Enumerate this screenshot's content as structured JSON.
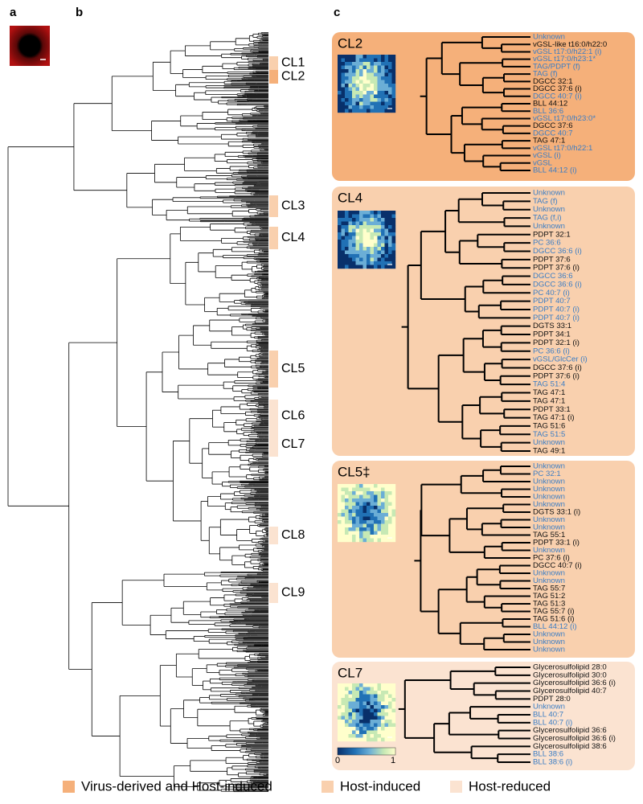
{
  "panel_labels": [
    "a",
    "b",
    "c"
  ],
  "clusters": [
    {
      "label": "CL1",
      "color": "#f9d0ae"
    },
    {
      "label": "CL2",
      "color": "#f5b07a"
    },
    {
      "label": "CL3",
      "color": "#f9d0ae"
    },
    {
      "label": "CL4",
      "color": "#f9d0ae"
    },
    {
      "label": "CL5",
      "color": "#f9d0ae"
    },
    {
      "label": "CL6",
      "color": "#fbe3d1"
    },
    {
      "label": "CL7",
      "color": "#fbe3d1"
    },
    {
      "label": "CL8",
      "color": "#fbe3d1"
    },
    {
      "label": "CL9",
      "color": "#fbe3d1"
    }
  ],
  "panels": [
    {
      "title": "CL2",
      "fill": "#f5b07a",
      "leaves": [
        {
          "label": "Unknown",
          "color": "#3b7dc4"
        },
        {
          "label": "vGSL-like t16:0/h22:0",
          "color": "#111111"
        },
        {
          "label": "vGSL t17:0/h22:1 (i)",
          "color": "#3b7dc4"
        },
        {
          "label": "vGSL t17:0/h23:1*",
          "color": "#3b7dc4"
        },
        {
          "label": "TAG/PDPT (f)",
          "color": "#3b7dc4"
        },
        {
          "label": "TAG (f)",
          "color": "#3b7dc4"
        },
        {
          "label": "DGCC 32:1",
          "color": "#111111"
        },
        {
          "label": "DGCC 37:6 (i)",
          "color": "#111111"
        },
        {
          "label": "DGCC 40:7 (i)",
          "color": "#3b7dc4"
        },
        {
          "label": "BLL 44:12",
          "color": "#111111"
        },
        {
          "label": "BLL 36:6",
          "color": "#3b7dc4"
        },
        {
          "label": "vGSL t17:0/h23:0*",
          "color": "#3b7dc4"
        },
        {
          "label": "DGCC 37:6",
          "color": "#111111"
        },
        {
          "label": "DGCC 40:7",
          "color": "#3b7dc4"
        },
        {
          "label": "TAG 47:1",
          "color": "#111111"
        },
        {
          "label": "vGSL t17:0/h22:1",
          "color": "#3b7dc4"
        },
        {
          "label": "vGSL (i)",
          "color": "#3b7dc4"
        },
        {
          "label": "vGSL",
          "color": "#3b7dc4"
        },
        {
          "label": "BLL 44:12 (i)",
          "color": "#3b7dc4"
        }
      ]
    },
    {
      "title": "CL4",
      "fill": "#f9d0ae",
      "leaves": [
        {
          "label": "Unknown",
          "color": "#3b7dc4"
        },
        {
          "label": "TAG (f)",
          "color": "#3b7dc4"
        },
        {
          "label": "Unknown",
          "color": "#3b7dc4"
        },
        {
          "label": "TAG (f,i)",
          "color": "#3b7dc4"
        },
        {
          "label": "Unknown",
          "color": "#3b7dc4"
        },
        {
          "label": "PDPT 32:1",
          "color": "#111111"
        },
        {
          "label": "PC 36:6",
          "color": "#3b7dc4"
        },
        {
          "label": "DGCC 36:6 (i)",
          "color": "#3b7dc4"
        },
        {
          "label": "PDPT 37:6",
          "color": "#111111"
        },
        {
          "label": "PDPT 37:6 (i)",
          "color": "#111111"
        },
        {
          "label": "DGCC 36:6",
          "color": "#3b7dc4"
        },
        {
          "label": "DGCC 36:6 (i)",
          "color": "#3b7dc4"
        },
        {
          "label": "PC 40:7 (i)",
          "color": "#3b7dc4"
        },
        {
          "label": "PDPT 40:7",
          "color": "#3b7dc4"
        },
        {
          "label": "PDPT 40:7 (i)",
          "color": "#3b7dc4"
        },
        {
          "label": "PDPT 40:7 (i)",
          "color": "#3b7dc4"
        },
        {
          "label": "DGTS 33:1",
          "color": "#111111"
        },
        {
          "label": "PDPT 34:1",
          "color": "#111111"
        },
        {
          "label": "PDPT 32:1 (i)",
          "color": "#111111"
        },
        {
          "label": "PC 36:6 (i)",
          "color": "#3b7dc4"
        },
        {
          "label": "vGSL/GlcCer (i)",
          "color": "#3b7dc4"
        },
        {
          "label": "DGCC 37:6 (i)",
          "color": "#111111"
        },
        {
          "label": "PDPT 37:6 (i)",
          "color": "#111111"
        },
        {
          "label": "TAG 51:4",
          "color": "#3b7dc4"
        },
        {
          "label": "TAG 47:1",
          "color": "#111111"
        },
        {
          "label": "TAG 47:1",
          "color": "#111111"
        },
        {
          "label": "PDPT 33:1",
          "color": "#111111"
        },
        {
          "label": "TAG 47:1 (i)",
          "color": "#111111"
        },
        {
          "label": "TAG 51:6",
          "color": "#111111"
        },
        {
          "label": "TAG 51:5",
          "color": "#3b7dc4"
        },
        {
          "label": "Unknown",
          "color": "#3b7dc4"
        },
        {
          "label": "TAG 49:1",
          "color": "#111111"
        }
      ]
    },
    {
      "title": "CL5‡",
      "fill": "#f9d0ae",
      "leaves": [
        {
          "label": "Unknown",
          "color": "#3b7dc4"
        },
        {
          "label": "PC 32:1",
          "color": "#3b7dc4"
        },
        {
          "label": "Unknown",
          "color": "#3b7dc4"
        },
        {
          "label": "Unknown",
          "color": "#3b7dc4"
        },
        {
          "label": "Unknown",
          "color": "#3b7dc4"
        },
        {
          "label": "Unknown",
          "color": "#3b7dc4"
        },
        {
          "label": "DGTS 33:1 (i)",
          "color": "#111111"
        },
        {
          "label": "Unknown",
          "color": "#3b7dc4"
        },
        {
          "label": "Unknown",
          "color": "#3b7dc4"
        },
        {
          "label": "TAG 55:1",
          "color": "#111111"
        },
        {
          "label": "PDPT 33:1 (i)",
          "color": "#111111"
        },
        {
          "label": "Unknown",
          "color": "#3b7dc4"
        },
        {
          "label": "PC 37:6 (i)",
          "color": "#111111"
        },
        {
          "label": "DGCC 40:7 (i)",
          "color": "#111111"
        },
        {
          "label": "Unknown",
          "color": "#3b7dc4"
        },
        {
          "label": "Unknown",
          "color": "#3b7dc4"
        },
        {
          "label": "TAG 55:7",
          "color": "#111111"
        },
        {
          "label": "TAG 51:2",
          "color": "#111111"
        },
        {
          "label": "TAG 51:3",
          "color": "#111111"
        },
        {
          "label": "TAG 55:7 (i)",
          "color": "#111111"
        },
        {
          "label": "TAG 51:6 (i)",
          "color": "#111111"
        },
        {
          "label": "BLL 44:12 (i)",
          "color": "#3b7dc4"
        },
        {
          "label": "Unknown",
          "color": "#3b7dc4"
        },
        {
          "label": "Unknown",
          "color": "#3b7dc4"
        },
        {
          "label": "Unknown",
          "color": "#3b7dc4"
        }
      ]
    },
    {
      "title": "CL7",
      "fill": "#fbe3d1",
      "leaves": [
        {
          "label": "Glycerosulfolipid 28:0",
          "color": "#111111"
        },
        {
          "label": "Glycerosulfolipid 30:0",
          "color": "#111111"
        },
        {
          "label": "Glycerosulfolipid 36:6 (i)",
          "color": "#111111"
        },
        {
          "label": "Glycerosulfolipid 40:7",
          "color": "#111111"
        },
        {
          "label": "PDPT 28:0",
          "color": "#111111"
        },
        {
          "label": "Unknown",
          "color": "#3b7dc4"
        },
        {
          "label": "BLL 40:7",
          "color": "#3b7dc4"
        },
        {
          "label": "BLL 40:7 (i)",
          "color": "#3b7dc4"
        },
        {
          "label": "Glycerosulfolipid 36:6",
          "color": "#111111"
        },
        {
          "label": "Glycerosulfolipid 36:6 (i)",
          "color": "#111111"
        },
        {
          "label": "Glycerosulfolipid 38:6",
          "color": "#111111"
        },
        {
          "label": "BLL 38:6",
          "color": "#3b7dc4"
        },
        {
          "label": "BLL 38:6 (i)",
          "color": "#3b7dc4"
        }
      ]
    }
  ],
  "colorbar": {
    "ticks": [
      0,
      1
    ]
  },
  "legend": [
    {
      "label": "Virus-derived and Host-induced",
      "color": "#f5b07a"
    },
    {
      "label": "Host-induced",
      "color": "#f9d0ae"
    },
    {
      "label": "Host-reduced",
      "color": "#fbe3d1"
    }
  ]
}
